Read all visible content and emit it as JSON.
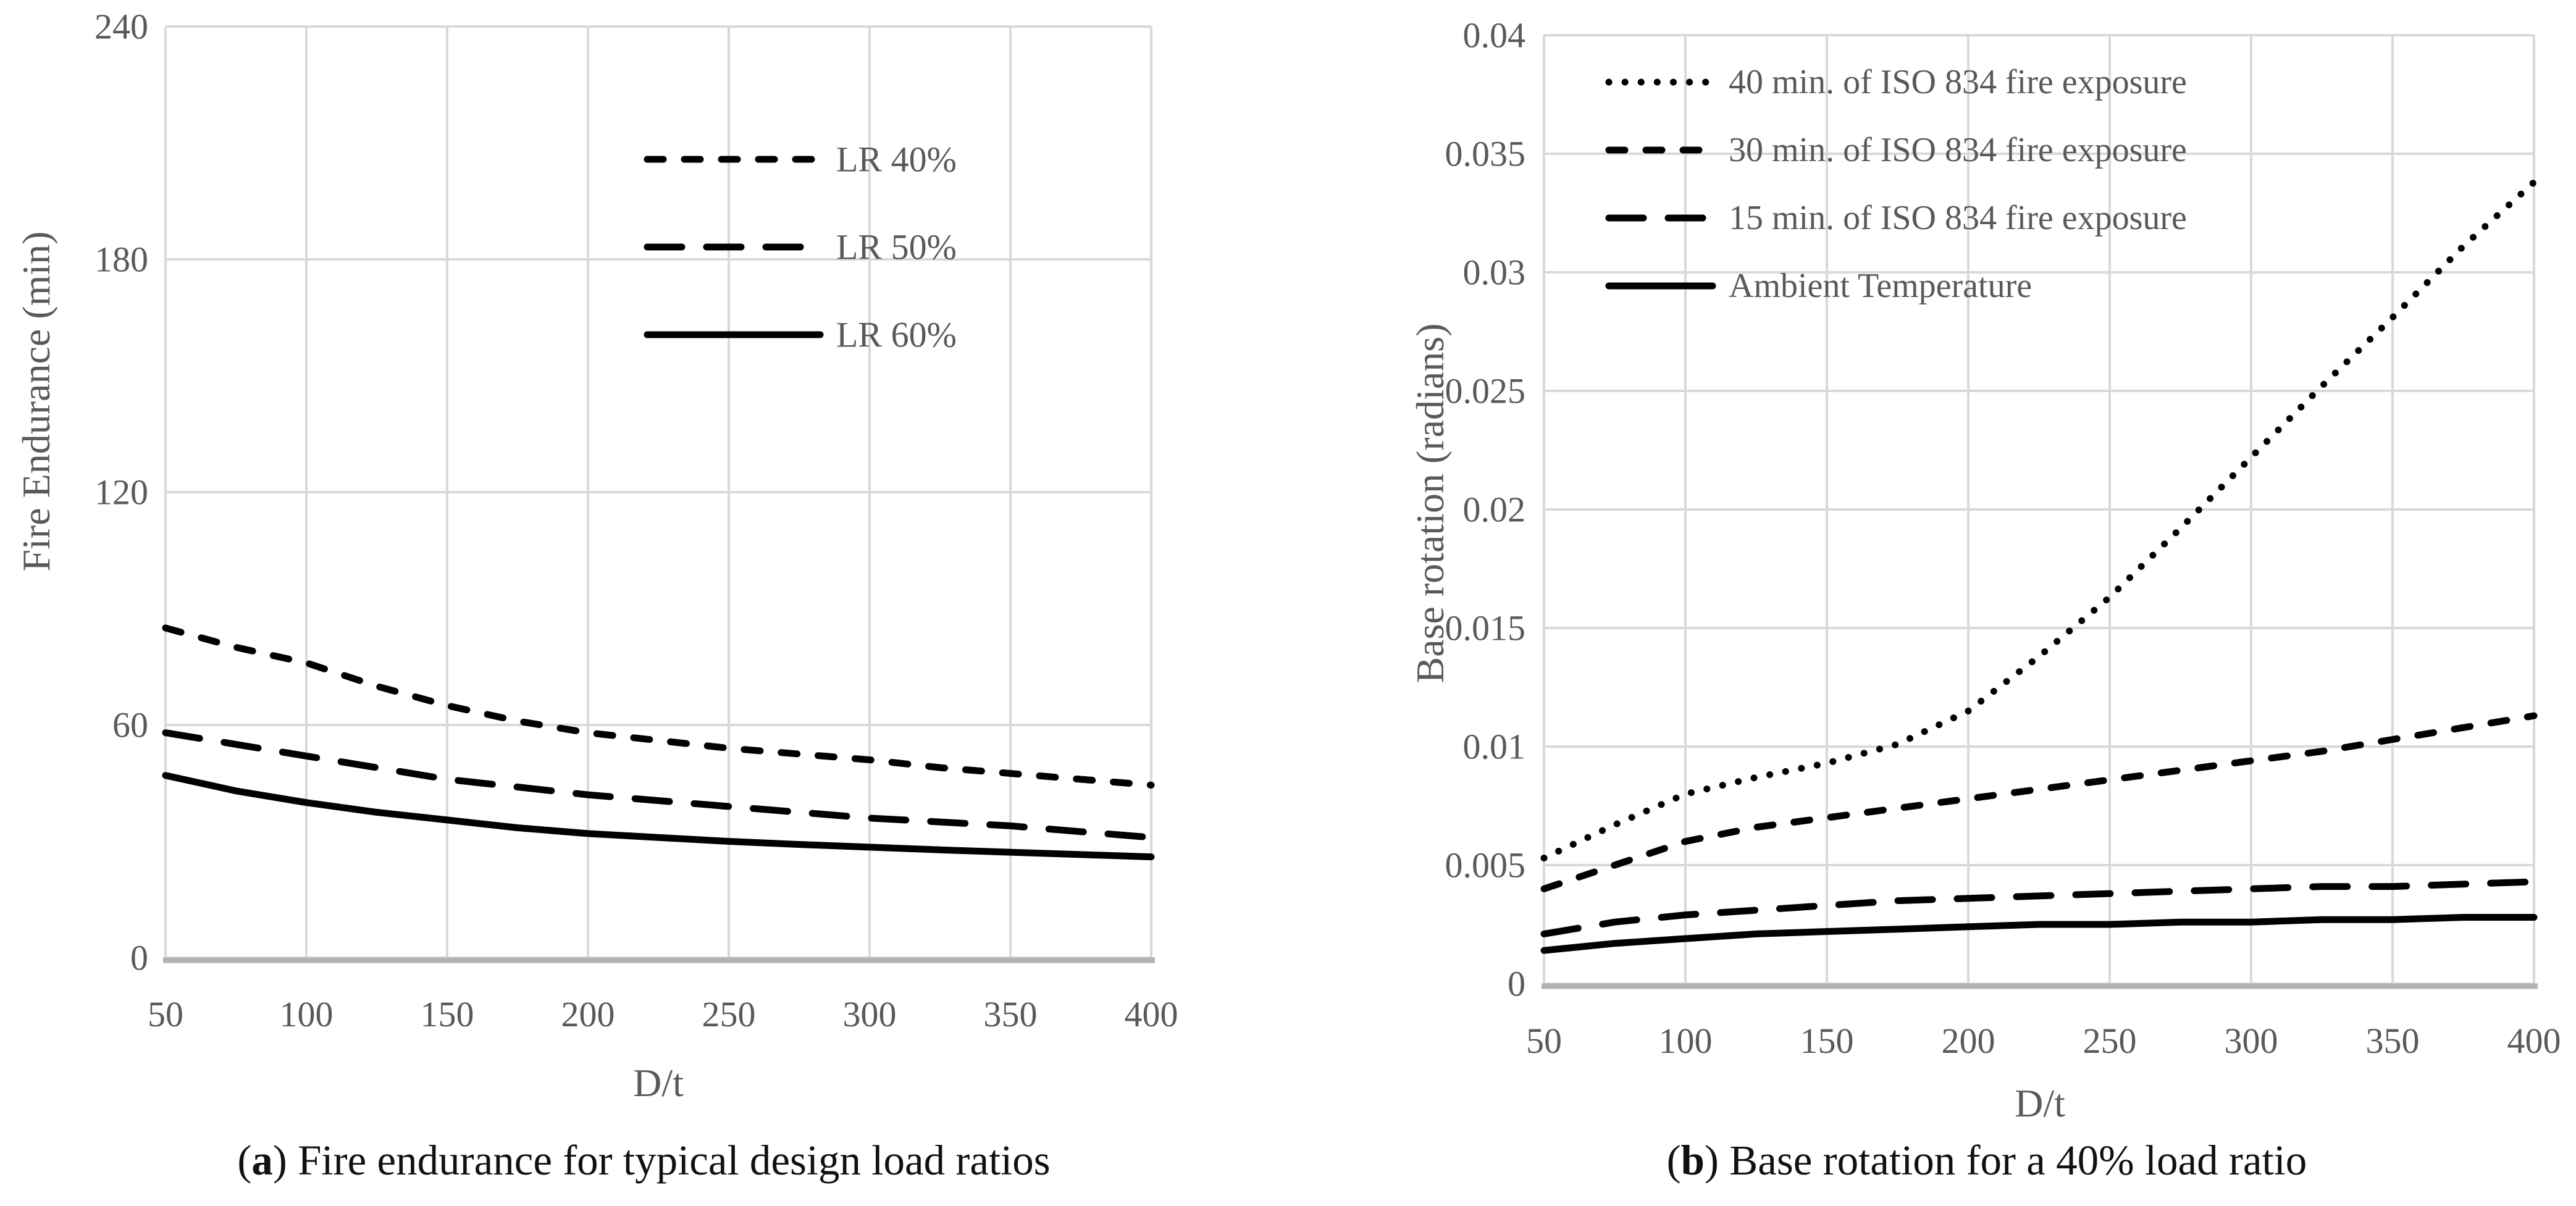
{
  "page": {
    "background": "#ffffff"
  },
  "colors": {
    "curve": "#000000",
    "gridline": "#d9d9d9",
    "axis_line": "#b3b3b3",
    "tick_text": "#595959",
    "axis_title_text": "#595959",
    "legend_text": "#595959",
    "caption_text": "#111111"
  },
  "captions": {
    "a": {
      "open": "(",
      "label": "a",
      "close": ") ",
      "text": "Fire endurance for typical design load ratios"
    },
    "b": {
      "open": "(",
      "label": "b",
      "close": ") ",
      "text": "Base rotation for a 40% load ratio"
    }
  },
  "chart_data": [
    {
      "id": "a",
      "type": "line",
      "title": "",
      "xlabel": "D/t",
      "ylabel": "Fire Endurance (min)",
      "xlim": [
        50,
        400
      ],
      "ylim": [
        0,
        240
      ],
      "grid": true,
      "legend_position": "inside-upper-right",
      "xticks": [
        50,
        100,
        150,
        200,
        250,
        300,
        350,
        400
      ],
      "xtick_labels": [
        "50",
        "100",
        "150",
        "200",
        "250",
        "300",
        "350",
        "400"
      ],
      "yticks": [
        0,
        60,
        120,
        180,
        240
      ],
      "ytick_labels": [
        "0",
        "60",
        "120",
        "180",
        "240"
      ],
      "x": [
        50,
        75,
        100,
        125,
        150,
        175,
        200,
        225,
        250,
        275,
        300,
        325,
        350,
        375,
        400
      ],
      "series": [
        {
          "name": "LR 40%",
          "style": "short-dash",
          "values": [
            85,
            80,
            76,
            70,
            65,
            61,
            58,
            56,
            54,
            52.5,
            51,
            49,
            47.5,
            46,
            44.5
          ]
        },
        {
          "name": "LR 50%",
          "style": "long-dash",
          "values": [
            58,
            55,
            52,
            49,
            46,
            44,
            42,
            40.5,
            39,
            37.5,
            36,
            35,
            34,
            32.5,
            31
          ]
        },
        {
          "name": "LR 60%",
          "style": "solid",
          "values": [
            47,
            43,
            40,
            37.5,
            35.5,
            33.5,
            32,
            31,
            30,
            29.2,
            28.5,
            27.8,
            27.2,
            26.6,
            26
          ]
        }
      ]
    },
    {
      "id": "b",
      "type": "line",
      "title": "",
      "xlabel": "D/t",
      "ylabel": "Base rotation (radians)",
      "xlim": [
        50,
        400
      ],
      "ylim": [
        0,
        0.04
      ],
      "grid": true,
      "legend_position": "inside-upper-left",
      "xticks": [
        50,
        100,
        150,
        200,
        250,
        300,
        350,
        400
      ],
      "xtick_labels": [
        "50",
        "100",
        "150",
        "200",
        "250",
        "300",
        "350",
        "400"
      ],
      "yticks": [
        0,
        0.005,
        0.01,
        0.015,
        0.02,
        0.025,
        0.03,
        0.035,
        0.04
      ],
      "ytick_labels": [
        "0",
        "0.005",
        "0.01",
        "0.015",
        "0.02",
        "0.025",
        "0.03",
        "0.035",
        "0.04"
      ],
      "x": [
        50,
        75,
        100,
        125,
        150,
        175,
        200,
        225,
        250,
        275,
        300,
        325,
        350,
        375,
        400
      ],
      "series": [
        {
          "name": "40 min. of ISO 834 fire exposure",
          "style": "dotted",
          "values": [
            0.0053,
            0.0067,
            0.008,
            0.0087,
            0.0093,
            0.0101,
            0.0115,
            0.0138,
            0.0163,
            0.0192,
            0.0222,
            0.0252,
            0.0281,
            0.0311,
            0.0338
          ]
        },
        {
          "name": "30 min. of ISO 834 fire exposure",
          "style": "short-dash",
          "values": [
            0.004,
            0.005,
            0.006,
            0.0066,
            0.007,
            0.0074,
            0.0078,
            0.0082,
            0.0086,
            0.009,
            0.0094,
            0.0098,
            0.0103,
            0.0108,
            0.0113
          ]
        },
        {
          "name": "15 min. of ISO 834 fire exposure",
          "style": "long-dash",
          "values": [
            0.0021,
            0.0026,
            0.0029,
            0.0031,
            0.0033,
            0.0035,
            0.0036,
            0.0037,
            0.0038,
            0.0039,
            0.004,
            0.0041,
            0.0041,
            0.0042,
            0.0043
          ]
        },
        {
          "name": "Ambient Temperature",
          "style": "solid",
          "values": [
            0.0014,
            0.0017,
            0.0019,
            0.0021,
            0.0022,
            0.0023,
            0.0024,
            0.0025,
            0.0025,
            0.0026,
            0.0026,
            0.0027,
            0.0027,
            0.0028,
            0.0028
          ]
        }
      ]
    }
  ]
}
